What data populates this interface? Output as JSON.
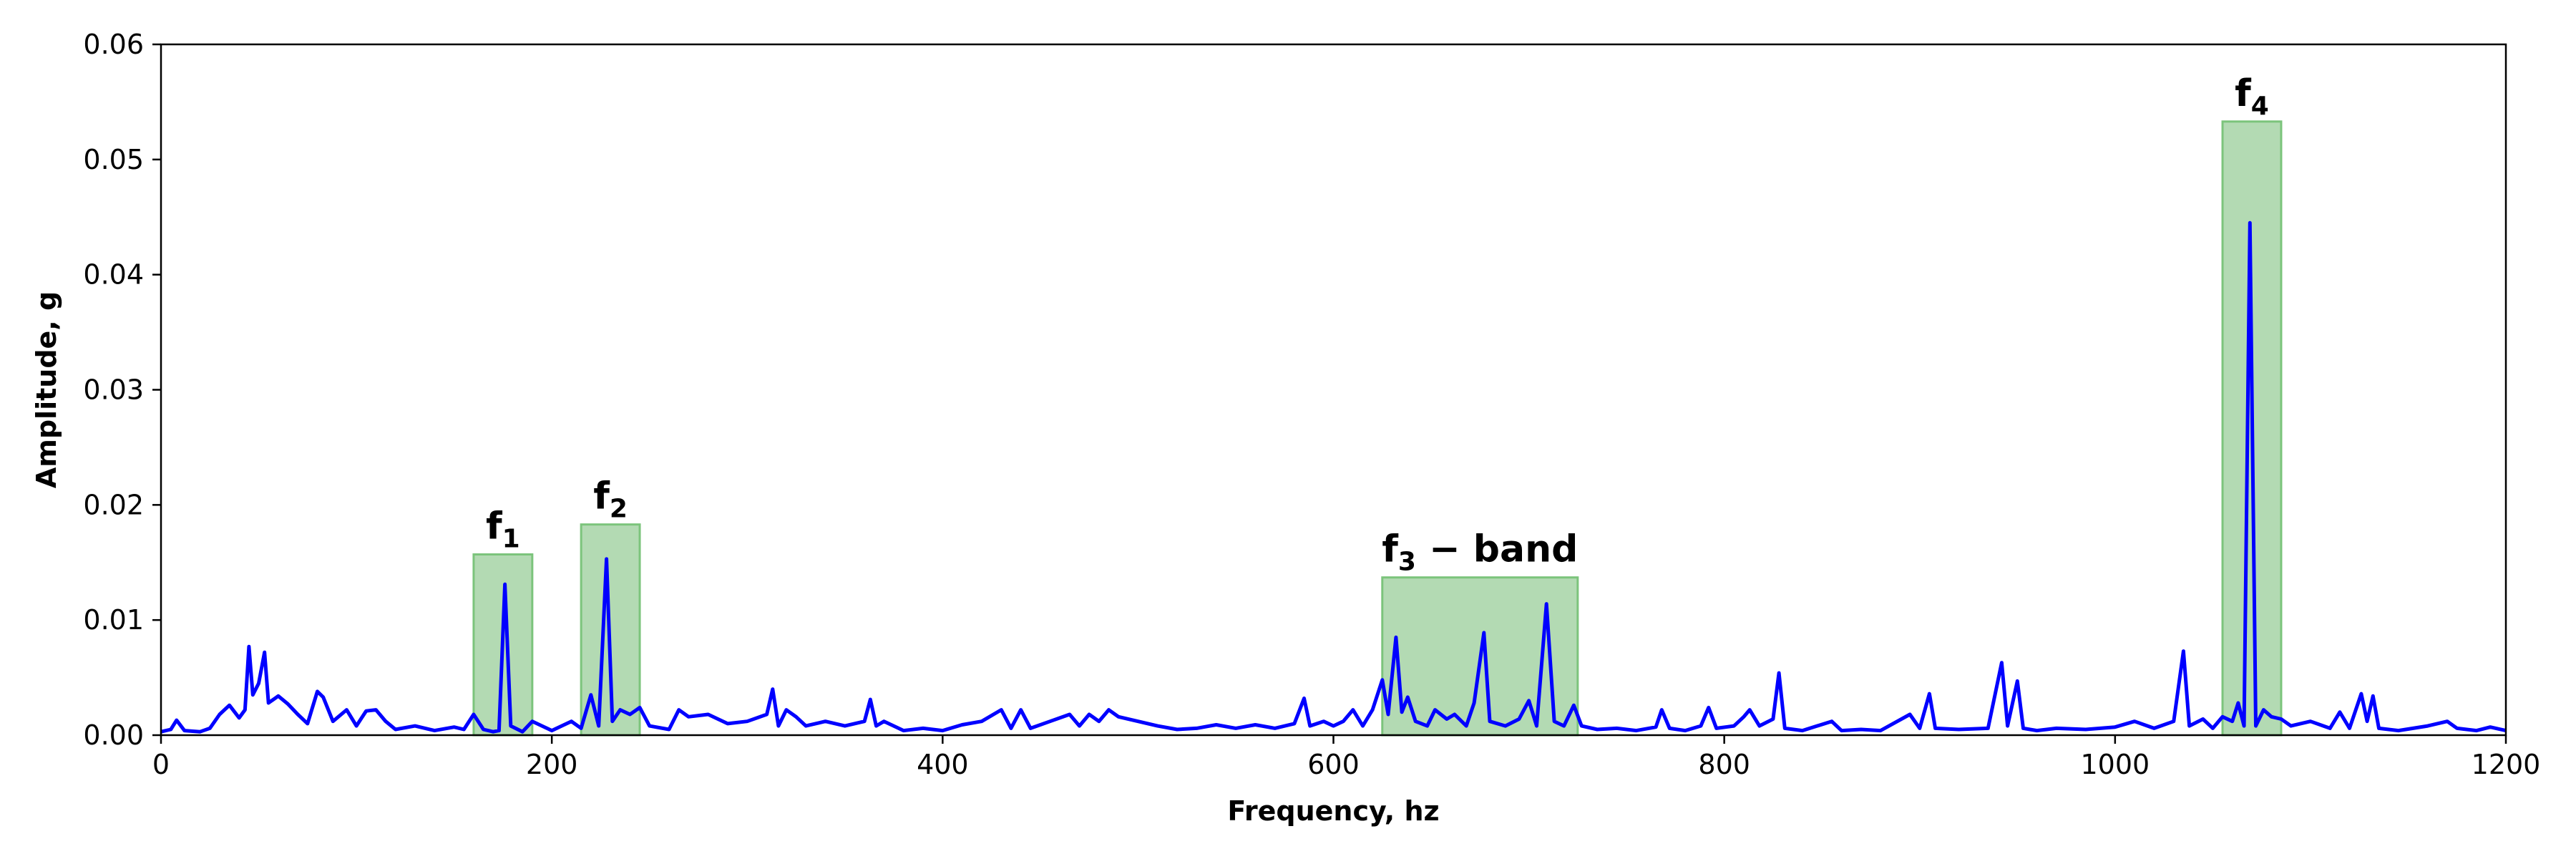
{
  "chart_data": {
    "type": "line",
    "title": "",
    "xlabel": "Frequency, hz",
    "ylabel": "Amplitude, g",
    "xlim": [
      0,
      1200
    ],
    "ylim": [
      0,
      0.06
    ],
    "xticks": [
      0,
      200,
      400,
      600,
      800,
      1000,
      1200
    ],
    "xtick_labels": [
      "0",
      "200",
      "400",
      "600",
      "800",
      "1000",
      "1200"
    ],
    "yticks": [
      0,
      0.01,
      0.02,
      0.03,
      0.04,
      0.05,
      0.06
    ],
    "ytick_labels": [
      "0.00",
      "0.01",
      "0.02",
      "0.03",
      "0.04",
      "0.05",
      "0.06"
    ],
    "grid": false,
    "colors": {
      "line": "#0000ff",
      "band_fill": "#b3dab3",
      "band_edge": "#7cc47c"
    },
    "series": [
      {
        "points": [
          [
            0,
            0.0003
          ],
          [
            5,
            0.0005
          ],
          [
            8,
            0.0013
          ],
          [
            12,
            0.0004
          ],
          [
            20,
            0.0003
          ],
          [
            25,
            0.0006
          ],
          [
            30,
            0.0018
          ],
          [
            35,
            0.0026
          ],
          [
            40,
            0.0015
          ],
          [
            43,
            0.0022
          ],
          [
            45,
            0.0077
          ],
          [
            47,
            0.0035
          ],
          [
            50,
            0.0045
          ],
          [
            53,
            0.0072
          ],
          [
            55,
            0.0028
          ],
          [
            60,
            0.0034
          ],
          [
            65,
            0.0027
          ],
          [
            70,
            0.0018
          ],
          [
            75,
            0.001
          ],
          [
            80,
            0.0038
          ],
          [
            83,
            0.0033
          ],
          [
            88,
            0.0012
          ],
          [
            95,
            0.0022
          ],
          [
            100,
            0.0008
          ],
          [
            105,
            0.0021
          ],
          [
            110,
            0.0022
          ],
          [
            115,
            0.0012
          ],
          [
            120,
            0.0005
          ],
          [
            130,
            0.0008
          ],
          [
            140,
            0.0004
          ],
          [
            150,
            0.0007
          ],
          [
            155,
            0.0005
          ],
          [
            160,
            0.0018
          ],
          [
            165,
            0.0005
          ],
          [
            170,
            0.0003
          ],
          [
            173,
            0.0004
          ],
          [
            176,
            0.0131
          ],
          [
            179,
            0.0008
          ],
          [
            185,
            0.0003
          ],
          [
            190,
            0.0012
          ],
          [
            200,
            0.0004
          ],
          [
            210,
            0.0012
          ],
          [
            215,
            0.0006
          ],
          [
            220,
            0.0035
          ],
          [
            224,
            0.0008
          ],
          [
            228,
            0.0153
          ],
          [
            231,
            0.0012
          ],
          [
            235,
            0.0022
          ],
          [
            240,
            0.0018
          ],
          [
            245,
            0.0024
          ],
          [
            250,
            0.0008
          ],
          [
            260,
            0.0005
          ],
          [
            265,
            0.0022
          ],
          [
            270,
            0.0016
          ],
          [
            280,
            0.0018
          ],
          [
            290,
            0.001
          ],
          [
            300,
            0.0012
          ],
          [
            310,
            0.0018
          ],
          [
            313,
            0.004
          ],
          [
            316,
            0.0008
          ],
          [
            320,
            0.0022
          ],
          [
            325,
            0.0016
          ],
          [
            330,
            0.0008
          ],
          [
            340,
            0.0012
          ],
          [
            350,
            0.0008
          ],
          [
            360,
            0.0012
          ],
          [
            363,
            0.0031
          ],
          [
            366,
            0.0008
          ],
          [
            370,
            0.0012
          ],
          [
            380,
            0.0004
          ],
          [
            390,
            0.0006
          ],
          [
            400,
            0.0004
          ],
          [
            410,
            0.0009
          ],
          [
            420,
            0.0012
          ],
          [
            430,
            0.0022
          ],
          [
            435,
            0.0006
          ],
          [
            440,
            0.0022
          ],
          [
            445,
            0.0006
          ],
          [
            455,
            0.0012
          ],
          [
            465,
            0.0018
          ],
          [
            470,
            0.0008
          ],
          [
            475,
            0.0018
          ],
          [
            480,
            0.0012
          ],
          [
            485,
            0.0022
          ],
          [
            490,
            0.0016
          ],
          [
            500,
            0.0012
          ],
          [
            510,
            0.0008
          ],
          [
            520,
            0.0005
          ],
          [
            530,
            0.0006
          ],
          [
            540,
            0.0009
          ],
          [
            550,
            0.0006
          ],
          [
            560,
            0.0009
          ],
          [
            570,
            0.0006
          ],
          [
            580,
            0.001
          ],
          [
            585,
            0.0032
          ],
          [
            588,
            0.0008
          ],
          [
            595,
            0.0012
          ],
          [
            600,
            0.0008
          ],
          [
            605,
            0.0012
          ],
          [
            610,
            0.0022
          ],
          [
            615,
            0.0008
          ],
          [
            620,
            0.0022
          ],
          [
            625,
            0.0048
          ],
          [
            628,
            0.0018
          ],
          [
            632,
            0.0085
          ],
          [
            635,
            0.002
          ],
          [
            638,
            0.0033
          ],
          [
            642,
            0.0012
          ],
          [
            648,
            0.0008
          ],
          [
            652,
            0.0022
          ],
          [
            658,
            0.0014
          ],
          [
            662,
            0.0018
          ],
          [
            668,
            0.0008
          ],
          [
            672,
            0.0028
          ],
          [
            677,
            0.0089
          ],
          [
            680,
            0.0012
          ],
          [
            688,
            0.0008
          ],
          [
            695,
            0.0014
          ],
          [
            700,
            0.003
          ],
          [
            704,
            0.0008
          ],
          [
            709,
            0.0114
          ],
          [
            713,
            0.0012
          ],
          [
            718,
            0.0008
          ],
          [
            723,
            0.0026
          ],
          [
            727,
            0.0008
          ],
          [
            735,
            0.0005
          ],
          [
            745,
            0.0006
          ],
          [
            755,
            0.0004
          ],
          [
            765,
            0.0007
          ],
          [
            768,
            0.0022
          ],
          [
            772,
            0.0006
          ],
          [
            780,
            0.0004
          ],
          [
            788,
            0.0008
          ],
          [
            792,
            0.0024
          ],
          [
            796,
            0.0006
          ],
          [
            805,
            0.0008
          ],
          [
            810,
            0.0016
          ],
          [
            813,
            0.0022
          ],
          [
            818,
            0.0008
          ],
          [
            825,
            0.0014
          ],
          [
            828,
            0.0054
          ],
          [
            831,
            0.0006
          ],
          [
            840,
            0.0004
          ],
          [
            855,
            0.0012
          ],
          [
            860,
            0.0004
          ],
          [
            870,
            0.0005
          ],
          [
            880,
            0.0004
          ],
          [
            895,
            0.0018
          ],
          [
            900,
            0.0006
          ],
          [
            905,
            0.0036
          ],
          [
            908,
            0.0006
          ],
          [
            920,
            0.0005
          ],
          [
            935,
            0.0006
          ],
          [
            942,
            0.0063
          ],
          [
            945,
            0.0008
          ],
          [
            950,
            0.0047
          ],
          [
            953,
            0.0006
          ],
          [
            960,
            0.0004
          ],
          [
            970,
            0.0006
          ],
          [
            985,
            0.0005
          ],
          [
            1000,
            0.0007
          ],
          [
            1010,
            0.0012
          ],
          [
            1020,
            0.0006
          ],
          [
            1030,
            0.0012
          ],
          [
            1035,
            0.0073
          ],
          [
            1038,
            0.0008
          ],
          [
            1045,
            0.0014
          ],
          [
            1050,
            0.0006
          ],
          [
            1055,
            0.0016
          ],
          [
            1060,
            0.0012
          ],
          [
            1063,
            0.0028
          ],
          [
            1066,
            0.0008
          ],
          [
            1069,
            0.0445
          ],
          [
            1072,
            0.0008
          ],
          [
            1076,
            0.0022
          ],
          [
            1080,
            0.0016
          ],
          [
            1085,
            0.0014
          ],
          [
            1090,
            0.0008
          ],
          [
            1100,
            0.0012
          ],
          [
            1110,
            0.0006
          ],
          [
            1115,
            0.002
          ],
          [
            1120,
            0.0006
          ],
          [
            1126,
            0.0036
          ],
          [
            1129,
            0.0012
          ],
          [
            1132,
            0.0034
          ],
          [
            1135,
            0.0006
          ],
          [
            1145,
            0.0004
          ],
          [
            1160,
            0.0008
          ],
          [
            1170,
            0.0012
          ],
          [
            1175,
            0.0006
          ],
          [
            1185,
            0.0004
          ],
          [
            1192,
            0.0007
          ],
          [
            1200,
            0.0004
          ]
        ]
      }
    ],
    "bands": [
      {
        "label": "f",
        "sub": "1",
        "suffix": "",
        "x_start": 160,
        "x_end": 190,
        "top": 0.0157
      },
      {
        "label": "f",
        "sub": "2",
        "suffix": "",
        "x_start": 215,
        "x_end": 245,
        "top": 0.0183
      },
      {
        "label": "f",
        "sub": "3",
        "suffix": " − band",
        "x_start": 625,
        "x_end": 725,
        "top": 0.0137
      },
      {
        "label": "f",
        "sub": "4",
        "suffix": "",
        "x_start": 1055,
        "x_end": 1085,
        "top": 0.0533
      }
    ]
  }
}
